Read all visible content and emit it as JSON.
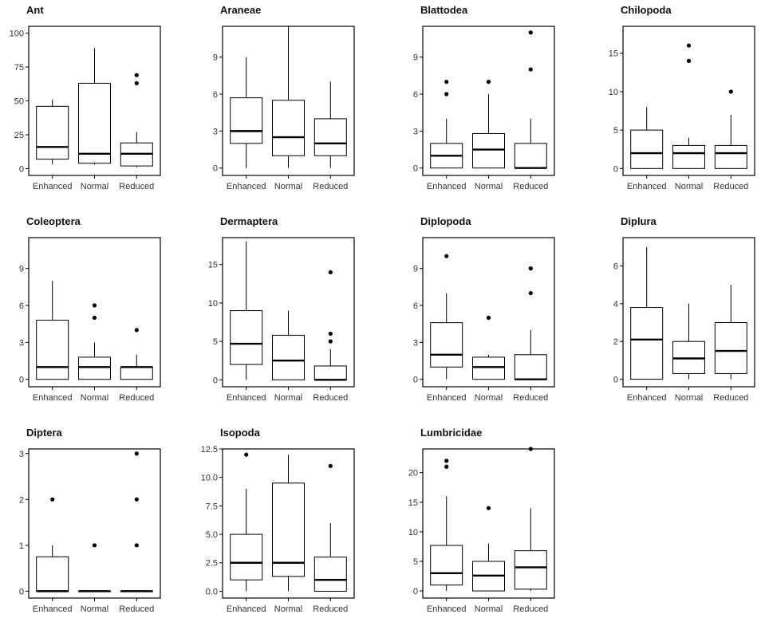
{
  "chart_data": [
    {
      "type": "box",
      "title": "Ant",
      "categories": [
        "Enhanced",
        "Normal",
        "Reduced"
      ],
      "ylim": [
        -5,
        105
      ],
      "yticks": [
        0,
        25,
        50,
        75,
        100
      ],
      "ytick_labels": [
        "0",
        "25",
        "50",
        "75",
        "100"
      ],
      "boxes": [
        {
          "whisker_low": 3,
          "q1": 7,
          "median": 16,
          "q3": 46,
          "whisker_high": 51,
          "outliers": []
        },
        {
          "whisker_low": 3,
          "q1": 4,
          "median": 11,
          "q3": 63,
          "whisker_high": 89,
          "outliers": []
        },
        {
          "whisker_low": 1,
          "q1": 2,
          "median": 11,
          "q3": 19,
          "whisker_high": 27,
          "outliers": [
            63,
            69
          ]
        }
      ]
    },
    {
      "type": "box",
      "title": "Araneae",
      "categories": [
        "Enhanced",
        "Normal",
        "Reduced"
      ],
      "ylim": [
        -0.6,
        11.5
      ],
      "yticks": [
        0,
        3,
        6,
        9
      ],
      "ytick_labels": [
        "0",
        "3",
        "6",
        "9"
      ],
      "boxes": [
        {
          "whisker_low": 0,
          "q1": 2,
          "median": 3,
          "q3": 5.7,
          "whisker_high": 9,
          "outliers": []
        },
        {
          "whisker_low": 0,
          "q1": 1,
          "median": 2.5,
          "q3": 5.5,
          "whisker_high": 11.5,
          "outliers": []
        },
        {
          "whisker_low": 0,
          "q1": 1,
          "median": 2,
          "q3": 4,
          "whisker_high": 7,
          "outliers": []
        }
      ]
    },
    {
      "type": "box",
      "title": "Blattodea",
      "categories": [
        "Enhanced",
        "Normal",
        "Reduced"
      ],
      "ylim": [
        -0.6,
        11.5
      ],
      "yticks": [
        0,
        3,
        6,
        9
      ],
      "ytick_labels": [
        "0",
        "3",
        "6",
        "9"
      ],
      "boxes": [
        {
          "whisker_low": 0,
          "q1": 0,
          "median": 1,
          "q3": 2,
          "whisker_high": 4,
          "outliers": [
            6,
            7
          ]
        },
        {
          "whisker_low": 0,
          "q1": 0,
          "median": 1.5,
          "q3": 2.8,
          "whisker_high": 6,
          "outliers": [
            7
          ]
        },
        {
          "whisker_low": 0,
          "q1": 0,
          "median": 0,
          "q3": 2,
          "whisker_high": 4,
          "outliers": [
            8,
            11
          ]
        }
      ]
    },
    {
      "type": "box",
      "title": "Chilopoda",
      "categories": [
        "Enhanced",
        "Normal",
        "Reduced"
      ],
      "ylim": [
        -0.9,
        18.5
      ],
      "yticks": [
        0,
        5,
        10,
        15
      ],
      "ytick_labels": [
        "0",
        "5",
        "10",
        "15"
      ],
      "boxes": [
        {
          "whisker_low": 0,
          "q1": 0,
          "median": 2,
          "q3": 5,
          "whisker_high": 8,
          "outliers": []
        },
        {
          "whisker_low": 0,
          "q1": 0,
          "median": 2,
          "q3": 3,
          "whisker_high": 4,
          "outliers": [
            14,
            16
          ]
        },
        {
          "whisker_low": 0,
          "q1": 0,
          "median": 2,
          "q3": 3,
          "whisker_high": 7,
          "outliers": [
            10
          ]
        }
      ]
    },
    {
      "type": "box",
      "title": "Coleoptera",
      "categories": [
        "Enhanced",
        "Normal",
        "Reduced"
      ],
      "ylim": [
        -0.6,
        11.5
      ],
      "yticks": [
        0,
        3,
        6,
        9
      ],
      "ytick_labels": [
        "0",
        "3",
        "6",
        "9"
      ],
      "boxes": [
        {
          "whisker_low": 0,
          "q1": 0,
          "median": 1,
          "q3": 4.8,
          "whisker_high": 8,
          "outliers": []
        },
        {
          "whisker_low": 0,
          "q1": 0,
          "median": 1,
          "q3": 1.8,
          "whisker_high": 3,
          "outliers": [
            5,
            6
          ]
        },
        {
          "whisker_low": 0,
          "q1": 0,
          "median": 1,
          "q3": 1,
          "whisker_high": 2,
          "outliers": [
            4
          ]
        }
      ]
    },
    {
      "type": "box",
      "title": "Dermaptera",
      "categories": [
        "Enhanced",
        "Normal",
        "Reduced"
      ],
      "ylim": [
        -0.9,
        18.5
      ],
      "yticks": [
        0,
        5,
        10,
        15
      ],
      "ytick_labels": [
        "0",
        "5",
        "10",
        "15"
      ],
      "boxes": [
        {
          "whisker_low": 0,
          "q1": 2,
          "median": 4.7,
          "q3": 9,
          "whisker_high": 18,
          "outliers": []
        },
        {
          "whisker_low": 0,
          "q1": 0,
          "median": 2.5,
          "q3": 5.8,
          "whisker_high": 9,
          "outliers": []
        },
        {
          "whisker_low": 0,
          "q1": 0,
          "median": 0,
          "q3": 1.8,
          "whisker_high": 4,
          "outliers": [
            5,
            6,
            14
          ]
        }
      ]
    },
    {
      "type": "box",
      "title": "Diplopoda",
      "categories": [
        "Enhanced",
        "Normal",
        "Reduced"
      ],
      "ylim": [
        -0.6,
        11.5
      ],
      "yticks": [
        0,
        3,
        6,
        9
      ],
      "ytick_labels": [
        "0",
        "3",
        "6",
        "9"
      ],
      "boxes": [
        {
          "whisker_low": 0,
          "q1": 1,
          "median": 2,
          "q3": 4.6,
          "whisker_high": 7,
          "outliers": [
            10
          ]
        },
        {
          "whisker_low": 0,
          "q1": 0,
          "median": 1,
          "q3": 1.8,
          "whisker_high": 2,
          "outliers": [
            5
          ]
        },
        {
          "whisker_low": 0,
          "q1": 0,
          "median": 0,
          "q3": 2,
          "whisker_high": 4,
          "outliers": [
            7,
            9
          ]
        }
      ]
    },
    {
      "type": "box",
      "title": "Diplura",
      "categories": [
        "Enhanced",
        "Normal",
        "Reduced"
      ],
      "ylim": [
        -0.4,
        7.5
      ],
      "yticks": [
        0,
        2,
        4,
        6
      ],
      "ytick_labels": [
        "0",
        "2",
        "4",
        "6"
      ],
      "boxes": [
        {
          "whisker_low": 0,
          "q1": 0,
          "median": 2.1,
          "q3": 3.8,
          "whisker_high": 7,
          "outliers": []
        },
        {
          "whisker_low": 0,
          "q1": 0.3,
          "median": 1.1,
          "q3": 2,
          "whisker_high": 4,
          "outliers": []
        },
        {
          "whisker_low": 0,
          "q1": 0.3,
          "median": 1.5,
          "q3": 3,
          "whisker_high": 5,
          "outliers": []
        }
      ]
    },
    {
      "type": "box",
      "title": "Diptera",
      "categories": [
        "Enhanced",
        "Normal",
        "Reduced"
      ],
      "ylim": [
        -0.15,
        3.1
      ],
      "yticks": [
        0,
        1,
        2,
        3
      ],
      "ytick_labels": [
        "0",
        "1",
        "2",
        "3"
      ],
      "boxes": [
        {
          "whisker_low": 0,
          "q1": 0,
          "median": 0,
          "q3": 0.75,
          "whisker_high": 1,
          "outliers": [
            2
          ]
        },
        {
          "whisker_low": 0,
          "q1": 0,
          "median": 0,
          "q3": 0,
          "whisker_high": 0,
          "outliers": [
            1
          ]
        },
        {
          "whisker_low": 0,
          "q1": 0,
          "median": 0,
          "q3": 0,
          "whisker_high": 0,
          "outliers": [
            1,
            2,
            3
          ]
        }
      ]
    },
    {
      "type": "box",
      "title": "Isopoda",
      "categories": [
        "Enhanced",
        "Normal",
        "Reduced"
      ],
      "ylim": [
        -0.6,
        12.5
      ],
      "yticks": [
        0,
        2.5,
        5,
        7.5,
        10,
        12.5
      ],
      "ytick_labels": [
        "0.0",
        "2.5",
        "5.0",
        "7.5",
        "10.0",
        "12.5"
      ],
      "boxes": [
        {
          "whisker_low": 0,
          "q1": 1,
          "median": 2.5,
          "q3": 5,
          "whisker_high": 9,
          "outliers": [
            12
          ]
        },
        {
          "whisker_low": 0,
          "q1": 1.3,
          "median": 2.5,
          "q3": 9.5,
          "whisker_high": 12,
          "outliers": []
        },
        {
          "whisker_low": 0,
          "q1": 0,
          "median": 1,
          "q3": 3,
          "whisker_high": 6,
          "outliers": [
            11
          ]
        }
      ]
    },
    {
      "type": "box",
      "title": "Lumbricidae",
      "categories": [
        "Enhanced",
        "Normal",
        "Reduced"
      ],
      "ylim": [
        -1.2,
        24
      ],
      "yticks": [
        0,
        5,
        10,
        15,
        20
      ],
      "ytick_labels": [
        "0",
        "5",
        "10",
        "15",
        "20"
      ],
      "boxes": [
        {
          "whisker_low": 0,
          "q1": 1,
          "median": 3,
          "q3": 7.7,
          "whisker_high": 16,
          "outliers": [
            21,
            22
          ]
        },
        {
          "whisker_low": 0,
          "q1": 0,
          "median": 2.6,
          "q3": 5,
          "whisker_high": 8,
          "outliers": [
            14
          ]
        },
        {
          "whisker_low": 0,
          "q1": 0.3,
          "median": 4,
          "q3": 6.8,
          "whisker_high": 14,
          "outliers": [
            24
          ]
        }
      ]
    }
  ]
}
